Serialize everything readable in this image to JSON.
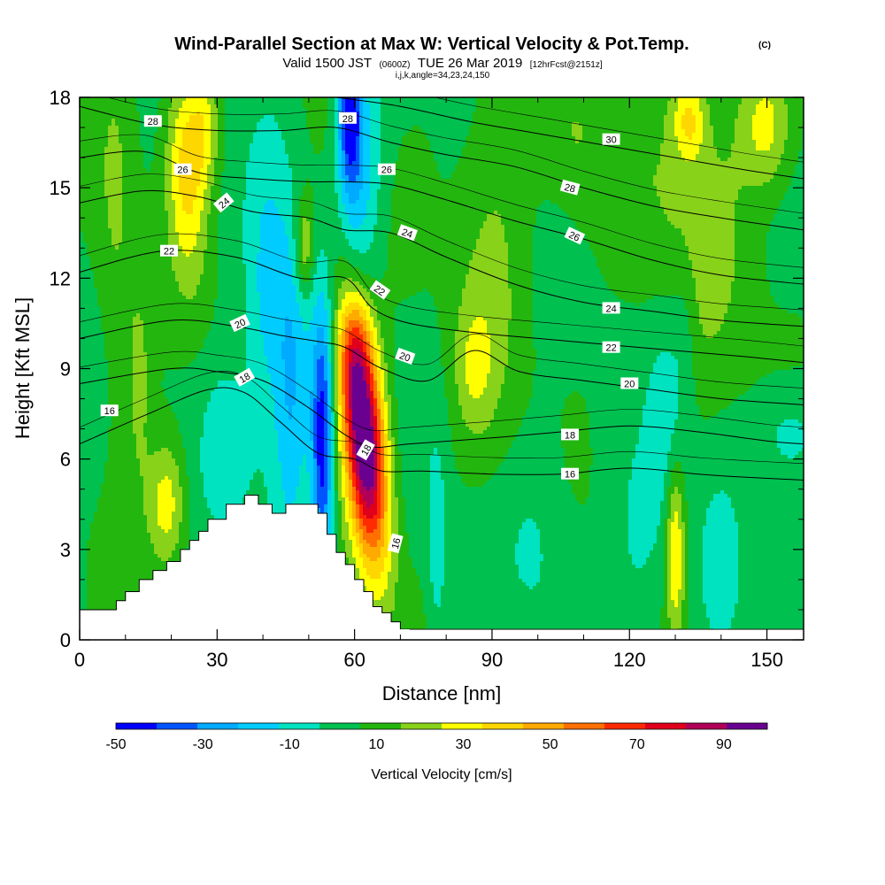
{
  "chart_data": {
    "type": "heatmap",
    "title": "Wind-Parallel Section at Max W: Vertical Velocity & Pot.Temp.",
    "title_units": "(C)",
    "subtitle_valid": "Valid 1500 JST",
    "subtitle_utc": "(0600Z)",
    "subtitle_date": "TUE 26 Mar 2019",
    "subtitle_fcst": "[12hrFcst@2151z]",
    "subtitle_indices": "i,j,k,angle=34,23,24,150",
    "xlabel": "Distance [nm]",
    "ylabel": "Height [Kft MSL]",
    "xlim": [
      0,
      158
    ],
    "ylim": [
      0,
      18
    ],
    "xticks": [
      0,
      30,
      60,
      90,
      120,
      150
    ],
    "yticks": [
      0,
      3,
      6,
      9,
      12,
      15,
      18
    ],
    "colorbar": {
      "label": "Vertical Velocity [cm/s]",
      "tick_labels": [
        "-50",
        "-30",
        "-10",
        "10",
        "30",
        "50",
        "70",
        "90"
      ],
      "tick_values": [
        -50,
        -30,
        -10,
        10,
        30,
        50,
        70,
        90
      ],
      "levels": [
        -50,
        -40,
        -30,
        -20,
        -10,
        0,
        10,
        20,
        30,
        40,
        50,
        60,
        70,
        80,
        90,
        100
      ],
      "colors": [
        "#0000ff",
        "#0055ff",
        "#00aaff",
        "#00ccff",
        "#00e3c0",
        "#00c050",
        "#23b60f",
        "#88d21a",
        "#ffff00",
        "#ffd700",
        "#ffaa00",
        "#ff7000",
        "#ff2a00",
        "#e0001c",
        "#b00058",
        "#6a0090"
      ]
    },
    "terrain_profile": {
      "x": [
        0,
        6,
        8,
        10,
        13,
        16,
        19,
        22,
        24,
        26,
        28,
        32,
        36,
        39,
        42,
        45,
        48,
        52,
        54,
        56,
        58,
        60,
        62,
        64,
        66,
        68,
        70,
        72
      ],
      "top": [
        1.0,
        1.0,
        1.3,
        1.6,
        2.0,
        2.3,
        2.6,
        3.0,
        3.3,
        3.6,
        4.0,
        4.5,
        4.8,
        4.5,
        4.2,
        4.5,
        4.5,
        4.2,
        3.5,
        2.9,
        2.5,
        2.0,
        1.6,
        1.1,
        0.9,
        0.6,
        0.35,
        0.35
      ]
    },
    "velocity_features": [
      {
        "x": 62,
        "y": 6.8,
        "sx": 3.2,
        "sy": 3.0,
        "tilt": -0.55,
        "value": 110
      },
      {
        "x": 53,
        "y": 6.5,
        "sx": 1.7,
        "sy": 3.2,
        "tilt": 0.0,
        "value": -55
      },
      {
        "x": 46,
        "y": 8.5,
        "sx": 3.0,
        "sy": 4.0,
        "tilt": 0.0,
        "value": -30
      },
      {
        "x": 40,
        "y": 11.0,
        "sx": 3.0,
        "sy": 4.0,
        "tilt": 0.2,
        "value": -18
      },
      {
        "x": 32,
        "y": 6.5,
        "sx": 3.5,
        "sy": 1.8,
        "tilt": 0.0,
        "value": -18
      },
      {
        "x": 23,
        "y": 15.5,
        "sx": 3.0,
        "sy": 2.5,
        "tilt": -0.3,
        "value": 32
      },
      {
        "x": 27,
        "y": 17.0,
        "sx": 2.5,
        "sy": 1.5,
        "tilt": 0.0,
        "value": 25
      },
      {
        "x": 59,
        "y": 17.5,
        "sx": 2.0,
        "sy": 2.0,
        "tilt": 0.0,
        "value": -60
      },
      {
        "x": 62,
        "y": 14.5,
        "sx": 3.0,
        "sy": 3.0,
        "tilt": 0.5,
        "value": -18
      },
      {
        "x": 49,
        "y": 13.0,
        "sx": 1.5,
        "sy": 1.2,
        "tilt": 0.0,
        "value": 28
      },
      {
        "x": 60,
        "y": 9.7,
        "sx": 2.5,
        "sy": 1.2,
        "tilt": 0.0,
        "value": 20
      },
      {
        "x": 150,
        "y": 17.0,
        "sx": 4.0,
        "sy": 1.5,
        "tilt": 0.0,
        "value": 25
      },
      {
        "x": 133,
        "y": 17.3,
        "sx": 2.5,
        "sy": 1.0,
        "tilt": 0.0,
        "value": 28
      },
      {
        "x": 134,
        "y": 14.0,
        "sx": 10.0,
        "sy": 4.0,
        "tilt": 0.0,
        "value": 15
      },
      {
        "x": 155,
        "y": 6.8,
        "sx": 5.0,
        "sy": 1.2,
        "tilt": 0.0,
        "value": -15
      },
      {
        "x": 128,
        "y": 7.5,
        "sx": 3.0,
        "sy": 3.0,
        "tilt": 0.0,
        "value": -15
      },
      {
        "x": 132,
        "y": 10.5,
        "sx": 2.0,
        "sy": 2.0,
        "tilt": 0.0,
        "value": -10
      },
      {
        "x": 130,
        "y": 3.0,
        "sx": 1.5,
        "sy": 2.0,
        "tilt": 0.0,
        "value": 35
      },
      {
        "x": 140,
        "y": 2.0,
        "sx": 3.0,
        "sy": 1.8,
        "tilt": 0.0,
        "value": -15
      },
      {
        "x": 122,
        "y": 3.0,
        "sx": 4.0,
        "sy": 2.5,
        "tilt": 0.0,
        "value": -12
      },
      {
        "x": 78,
        "y": 3.0,
        "sx": 1.5,
        "sy": 2.5,
        "tilt": 0.0,
        "value": -15
      },
      {
        "x": 100,
        "y": 3.5,
        "sx": 5.0,
        "sy": 2.5,
        "tilt": 0.0,
        "value": -10
      },
      {
        "x": 19,
        "y": 4.5,
        "sx": 3.0,
        "sy": 1.5,
        "tilt": 0.0,
        "value": 30
      },
      {
        "x": 13,
        "y": 8.5,
        "sx": 2.0,
        "sy": 2.5,
        "tilt": 0.0,
        "value": 15
      },
      {
        "x": 86,
        "y": 9.0,
        "sx": 3.0,
        "sy": 1.5,
        "tilt": 0.0,
        "value": 15
      },
      {
        "x": 90,
        "y": 13.0,
        "sx": 6.0,
        "sy": 5.0,
        "tilt": 0.0,
        "value": 13
      },
      {
        "x": 8,
        "y": 13.0,
        "sx": 3.0,
        "sy": 5.0,
        "tilt": 0.0,
        "value": 12
      },
      {
        "x": 108,
        "y": 16.5,
        "sx": 5.0,
        "sy": 2.0,
        "tilt": 0.0,
        "value": 12
      }
    ],
    "theta_contours": [
      {
        "level": 16,
        "label": "16",
        "x": [
          0,
          15,
          28,
          36,
          44,
          52,
          60,
          66,
          75,
          90,
          105,
          120,
          135,
          145,
          158
        ],
        "y": [
          6.5,
          7.5,
          8.3,
          8.2,
          7.2,
          6.2,
          6.0,
          5.6,
          5.6,
          5.5,
          5.5,
          5.7,
          5.5,
          5.4,
          5.3
        ]
      },
      {
        "level": 18,
        "label": "18",
        "x": [
          0,
          20,
          30,
          40,
          50,
          58,
          64,
          72,
          90,
          105,
          120,
          135,
          150,
          158
        ],
        "y": [
          8.5,
          9.0,
          8.9,
          8.6,
          7.7,
          6.8,
          6.4,
          6.5,
          6.7,
          6.9,
          7.1,
          6.9,
          6.6,
          6.5
        ]
      },
      {
        "level": 20,
        "label": "20",
        "x": [
          0,
          20,
          34,
          44,
          52,
          58,
          66,
          76,
          86,
          96,
          110,
          125,
          140,
          158
        ],
        "y": [
          10.0,
          10.6,
          10.4,
          10.1,
          9.9,
          9.7,
          9.0,
          8.6,
          9.6,
          8.9,
          8.6,
          8.3,
          8.0,
          7.8
        ]
      },
      {
        "level": 22,
        "label": "22",
        "x": [
          0,
          18,
          34,
          48,
          58,
          64,
          72,
          86,
          100,
          115,
          130,
          145,
          158
        ],
        "y": [
          12.2,
          12.9,
          12.7,
          12.0,
          12.0,
          11.0,
          10.5,
          10.2,
          10.0,
          9.8,
          9.6,
          9.4,
          9.2
        ]
      },
      {
        "level": 24,
        "label": "24",
        "x": [
          0,
          14,
          26,
          38,
          50,
          58,
          68,
          80,
          95,
          110,
          125,
          140,
          158
        ],
        "y": [
          14.5,
          14.9,
          14.7,
          14.2,
          14.0,
          13.6,
          13.5,
          12.7,
          11.8,
          11.2,
          10.9,
          10.6,
          10.4
        ]
      },
      {
        "level": 26,
        "label": "26",
        "x": [
          0,
          14,
          26,
          38,
          50,
          58,
          68,
          80,
          95,
          110,
          125,
          140,
          158
        ],
        "y": [
          16.0,
          16.2,
          15.5,
          15.3,
          15.2,
          15.2,
          15.1,
          14.6,
          13.9,
          13.3,
          12.6,
          12.1,
          11.8
        ]
      },
      {
        "level": 28,
        "label": "28",
        "x": [
          0,
          16,
          30,
          44,
          56,
          68,
          80,
          95,
          110,
          125,
          140,
          158
        ],
        "y": [
          17.7,
          17.1,
          16.9,
          16.9,
          17.0,
          16.5,
          16.1,
          15.7,
          15.0,
          14.4,
          14.0,
          13.6
        ]
      },
      {
        "level": 30,
        "label": "30",
        "x": [
          56,
          70,
          85,
          100,
          115,
          130,
          145,
          158
        ],
        "y": [
          18.0,
          17.7,
          17.2,
          16.8,
          16.4,
          16.0,
          15.6,
          15.3
        ]
      }
    ],
    "contour_labels": [
      {
        "text": "16",
        "x": 6.5,
        "y": 7.6,
        "angle": 0
      },
      {
        "text": "18",
        "x": 36,
        "y": 8.7,
        "angle": -30
      },
      {
        "text": "20",
        "x": 35,
        "y": 10.5,
        "angle": -25
      },
      {
        "text": "22",
        "x": 19.5,
        "y": 12.9,
        "angle": 0
      },
      {
        "text": "24",
        "x": 31.5,
        "y": 14.5,
        "angle": -40
      },
      {
        "text": "26",
        "x": 22.5,
        "y": 15.6,
        "angle": 0
      },
      {
        "text": "28",
        "x": 16.0,
        "y": 17.2,
        "angle": 0
      },
      {
        "text": "28",
        "x": 58.5,
        "y": 17.3,
        "angle": 0
      },
      {
        "text": "26",
        "x": 67.0,
        "y": 15.6,
        "angle": 0
      },
      {
        "text": "24",
        "x": 71.5,
        "y": 13.5,
        "angle": 20
      },
      {
        "text": "22",
        "x": 65.5,
        "y": 11.6,
        "angle": 35
      },
      {
        "text": "20",
        "x": 71.0,
        "y": 9.4,
        "angle": 20
      },
      {
        "text": "18",
        "x": 62.5,
        "y": 6.3,
        "angle": -60
      },
      {
        "text": "16",
        "x": 69.0,
        "y": 3.2,
        "angle": -75
      },
      {
        "text": "30",
        "x": 116.0,
        "y": 16.6,
        "angle": 0
      },
      {
        "text": "28",
        "x": 107.0,
        "y": 15.0,
        "angle": 15
      },
      {
        "text": "26",
        "x": 108.0,
        "y": 13.4,
        "angle": 25
      },
      {
        "text": "24",
        "x": 116.0,
        "y": 11.0,
        "angle": 0
      },
      {
        "text": "22",
        "x": 116.0,
        "y": 9.7,
        "angle": 0
      },
      {
        "text": "20",
        "x": 120.0,
        "y": 8.5,
        "angle": 0
      },
      {
        "text": "18",
        "x": 107.0,
        "y": 6.8,
        "angle": 0
      },
      {
        "text": "16",
        "x": 107.0,
        "y": 5.5,
        "angle": 0
      }
    ]
  }
}
